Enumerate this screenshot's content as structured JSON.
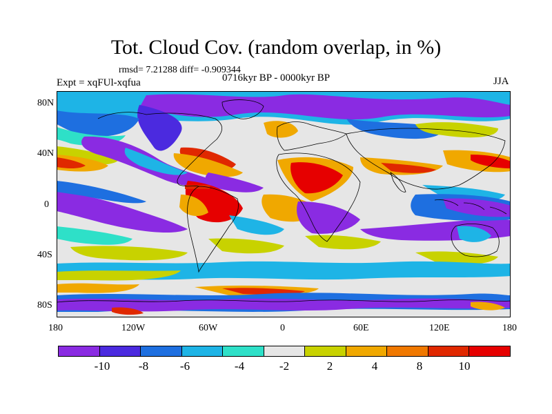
{
  "title": "Tot. Cloud Cov. (random overlap, in %)",
  "stats": "rmsd= 7.21288 diff= -0.909344",
  "experiment": "Expt = xqFUl-xqfua",
  "period": "0716kyr BP - 0000kyr BP",
  "season": "JJA",
  "axes": {
    "lat_labels": [
      "80N",
      "40N",
      "0",
      "40S",
      "80S"
    ],
    "lon_labels": [
      "180",
      "120W",
      "60W",
      "0",
      "60E",
      "120E",
      "180"
    ]
  },
  "colorbar": {
    "labels": [
      "-10",
      "-8",
      "-6",
      "-4",
      "-2",
      "2",
      "4",
      "8",
      "10"
    ],
    "colors": [
      "#8a2be2",
      "#4b2adf",
      "#1e6fe0",
      "#1eb4e6",
      "#2ee0c8",
      "#e6e6e6",
      "#c8d200",
      "#f0a800",
      "#f07800",
      "#e02800",
      "#e60000"
    ]
  },
  "palette": {
    "neutral": "#e6e6e6",
    "purple": "#8a2be2",
    "blue": "#1e6fe0",
    "cyan": "#1eb4e6",
    "teal": "#2ee0c8",
    "yellow": "#c8d200",
    "orange": "#f0a800",
    "red": "#e60000",
    "coastline": "#000000"
  }
}
